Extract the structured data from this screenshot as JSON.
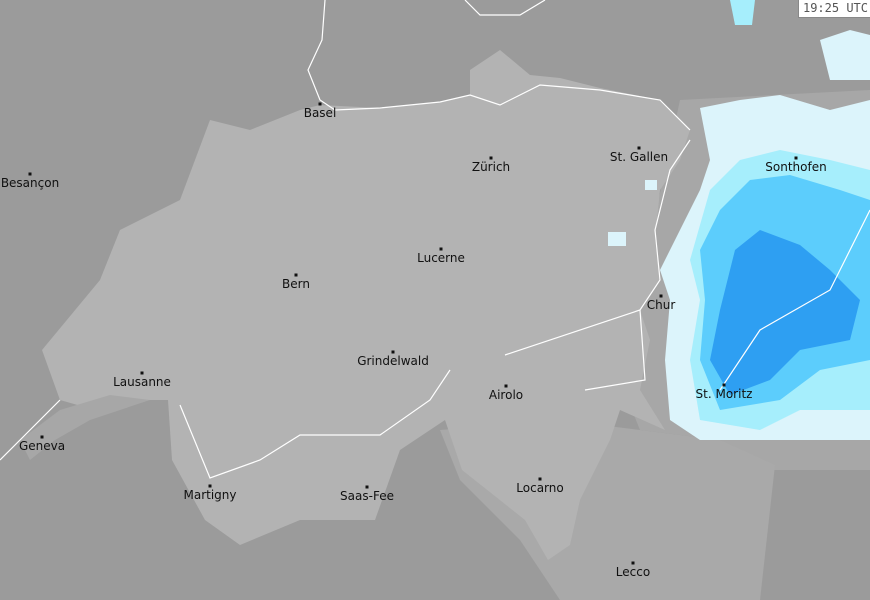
{
  "timestamp": "19:25 UTC",
  "colors": {
    "outside": "#9b9b9b",
    "neighbor": "#a7a7a7",
    "switzerland": "#b3b3b3",
    "precip_light": "#dcf4fb",
    "precip_cyan": "#a6eefc",
    "precip_medium": "#5ccdfc",
    "precip_heavy": "#2e9ff2",
    "border_line": "#ffffff"
  },
  "cities": [
    {
      "name": "Basel"
    },
    {
      "name": "Besançon"
    },
    {
      "name": "Zürich"
    },
    {
      "name": "St. Gallen"
    },
    {
      "name": "Sonthofen"
    },
    {
      "name": "Lucerne"
    },
    {
      "name": "Bern"
    },
    {
      "name": "Chur"
    },
    {
      "name": "Grindelwald"
    },
    {
      "name": "Lausanne"
    },
    {
      "name": "Airolo"
    },
    {
      "name": "St. Moritz"
    },
    {
      "name": "Geneva"
    },
    {
      "name": "Martigny"
    },
    {
      "name": "Saas-Fee"
    },
    {
      "name": "Locarno"
    },
    {
      "name": "Lecco"
    }
  ]
}
